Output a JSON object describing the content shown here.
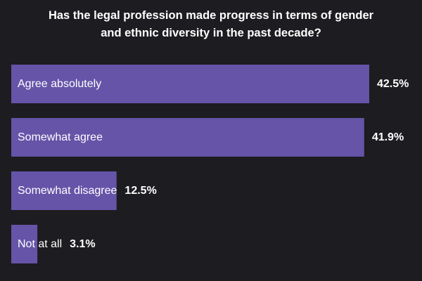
{
  "chart_data": {
    "type": "bar",
    "orientation": "horizontal",
    "title_lines": [
      "Has the legal profession made progress in terms of gender",
      "and ethnic diversity in the past decade?"
    ],
    "categories": [
      "Agree absolutely",
      "Somewhat agree",
      "Somewhat disagree",
      "Not at all"
    ],
    "values": [
      42.5,
      41.9,
      12.5,
      3.1
    ],
    "value_labels": [
      "42.5%",
      "41.9%",
      "12.5%",
      "3.1%"
    ],
    "xlim": [
      0,
      42.5
    ],
    "bar_color": "#6554a8",
    "background_color": "#1d1c20",
    "text_color": "#ffffff",
    "grid": false,
    "legend": "none"
  }
}
